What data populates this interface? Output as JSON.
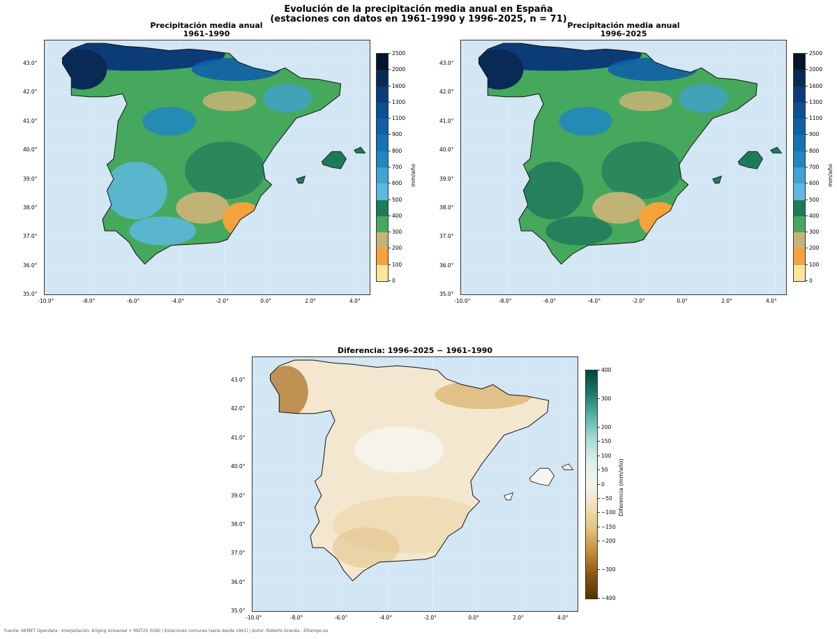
{
  "figure": {
    "title_line1": "Evolución de la precipitación media anual en España",
    "title_line2": "(estaciones con datos en 1961–1990 y 1996–2025,  n = 71)",
    "footer": "Fuente: AEMET Opendata · Interpolación: Kriging Universal + MDT25 (IGN) | Estaciones comunes (serie desde 1961) | Autor: Roberto Granda - Eltiempo.es"
  },
  "panels": [
    {
      "title_line1": "Precipitación media anual",
      "title_line2": "1961–1990",
      "colorbar_label": "mm/año"
    },
    {
      "title_line1": "Precipitación media anual",
      "title_line2": "1996–2025",
      "colorbar_label": "mm/año"
    },
    {
      "title_line1": "Diferencia: 1996–2025 − 1961–1990",
      "colorbar_label": "Diferencia (mm/año)"
    }
  ],
  "axes": {
    "lon_ticks": [
      "-10.0°",
      "-8.0°",
      "-6.0°",
      "-4.0°",
      "-2.0°",
      "0.0°",
      "2.0°",
      "4.0°"
    ],
    "lat_ticks": [
      "43.0°",
      "42.0°",
      "41.0°",
      "40.0°",
      "39.0°",
      "38.0°",
      "37.0°",
      "36.0°",
      "35.0°"
    ],
    "lon_range": [
      -10.1,
      4.5
    ],
    "lat_range": [
      35.0,
      43.8
    ]
  },
  "precip_scale": {
    "labels": [
      "2500",
      "2000",
      "1600",
      "1300",
      "1100",
      "900",
      "800",
      "700",
      "600",
      "500",
      "400",
      "300",
      "200",
      "100",
      "0"
    ],
    "colors": [
      "#04142a",
      "#082a55",
      "#0b3c78",
      "#0d4f93",
      "#1060a6",
      "#1473b5",
      "#1f87c2",
      "#3fa3d4",
      "#5db9e0",
      "#1f7a5a",
      "#46a85c",
      "#c8b377",
      "#f4a23a",
      "#fde49b",
      "#ffffff"
    ]
  },
  "diff_scale": {
    "labels": [
      "400",
      "300",
      "200",
      "150",
      "100",
      "50",
      "0",
      "−50",
      "−100",
      "−150",
      "−200",
      "−300",
      "−400"
    ],
    "values": [
      400,
      300,
      200,
      150,
      100,
      50,
      0,
      -50,
      -100,
      -150,
      -200,
      -300,
      -400
    ],
    "range": [
      -400,
      400
    ],
    "colors": [
      "#01463b",
      "#1a7a6c",
      "#56b4a6",
      "#a6dcd2",
      "#dcefec",
      "#f5f3ee",
      "#f0dfb7",
      "#e2c07c",
      "#c48a35",
      "#8a5310",
      "#553204"
    ]
  },
  "map_colors": {
    "sea": "#d2e6f4",
    "precip_1961": {
      "north": "#0b3c78",
      "interior": "#46a85c",
      "south": "#5db9e0",
      "dry": "#c8b377",
      "se": "#f4a23a"
    },
    "precip_1996": {
      "north": "#0b3c78",
      "interior": "#46a85c",
      "south": "#1f7a5a",
      "dry": "#c8b377",
      "se": "#f4a23a"
    },
    "diff": {
      "land": "#f3e8cf",
      "galicia": "#b5823e",
      "northeast": "#d8b06a"
    }
  }
}
